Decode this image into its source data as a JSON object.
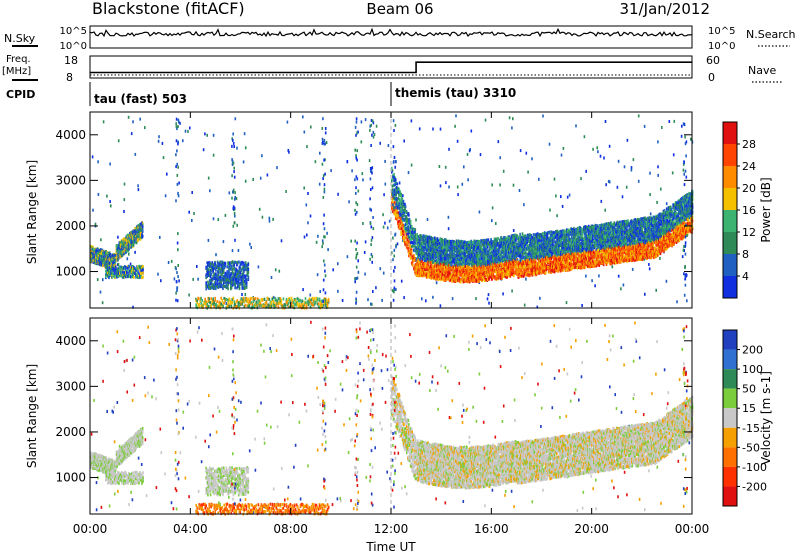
{
  "header": {
    "station": "Blackstone (fitACF)",
    "beam": "Beam 06",
    "date": "31/Jan/2012"
  },
  "top_panels": {
    "nsky_label": "N.Sky",
    "nsky_ticks": [
      "10^5",
      "10^0"
    ],
    "nsearch_label": "N.Search",
    "nsearch_ticks": [
      "10^5",
      "10^0"
    ],
    "freq_label_1": "Freq.",
    "freq_label_2": "[MHz]",
    "freq_ticks": [
      "18",
      "8"
    ],
    "nave_label": "Nave",
    "nave_ticks": [
      "60",
      "0"
    ],
    "freq_steps": [
      {
        "x": 0.0,
        "v": 10.5
      },
      {
        "x": 13.0,
        "v": 15.2
      },
      {
        "x": 24.0,
        "v": 15.2
      }
    ],
    "cpid_label": "CPID",
    "cpid_modes": [
      {
        "start": 0.0,
        "label": "tau (fast) 503"
      },
      {
        "start": 12.0,
        "label": "themis (tau) 3310"
      }
    ]
  },
  "chart_data": [
    {
      "type": "heatmap",
      "name": "power",
      "ylabel": "Slant Range [km]",
      "xlabel": "Time UT",
      "xlim": [
        0,
        24
      ],
      "ylim": [
        200,
        4500
      ],
      "x_ticks": [
        0,
        4,
        8,
        12,
        16,
        20,
        24
      ],
      "x_tick_labels": [
        "00:00",
        "04:00",
        "08:00",
        "12:00",
        "16:00",
        "20:00",
        "00:00"
      ],
      "y_ticks": [
        1000,
        2000,
        3000,
        4000
      ],
      "y_tick_labels": [
        "1000",
        "2000",
        "3000",
        "4000"
      ],
      "colorbar": {
        "label": "Power [dB]",
        "ticks": [
          "4",
          "8",
          "12",
          "16",
          "20",
          "24",
          "28"
        ],
        "colors": [
          "#1030e0",
          "#2060c0",
          "#2e8b57",
          "#3cb371",
          "#f5c000",
          "#ff8c00",
          "#ff4500",
          "#e01010"
        ]
      }
    },
    {
      "type": "heatmap",
      "name": "velocity",
      "ylabel": "Slant Range [km]",
      "xlabel": "Time UT",
      "xlim": [
        0,
        24
      ],
      "ylim": [
        200,
        4500
      ],
      "x_ticks": [
        0,
        4,
        8,
        12,
        16,
        20,
        24
      ],
      "x_tick_labels": [
        "00:00",
        "04:00",
        "08:00",
        "12:00",
        "16:00",
        "20:00",
        "00:00"
      ],
      "y_ticks": [
        1000,
        2000,
        3000,
        4000
      ],
      "y_tick_labels": [
        "1000",
        "2000",
        "3000",
        "4000"
      ],
      "colorbar": {
        "label": "Velocity [m s-1]",
        "ticks": [
          "200",
          "100",
          "50",
          "15",
          "-15",
          "-50",
          "-100",
          "-200"
        ],
        "colors": [
          "#2040c0",
          "#3070d0",
          "#2e8b57",
          "#7ccd3c",
          "#c8c8c8",
          "#f5a000",
          "#ff7000",
          "#ff3000",
          "#e01010"
        ]
      }
    }
  ],
  "footer": {
    "xlabel": "Time UT"
  }
}
